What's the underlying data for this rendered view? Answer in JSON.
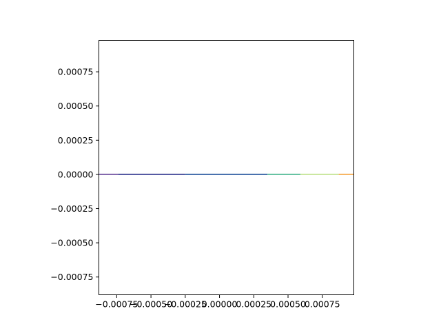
{
  "chart_data": {
    "type": "line",
    "title": "",
    "xlabel": "",
    "ylabel": "",
    "xlim": [
      -0.00088,
      0.00098
    ],
    "ylim": [
      -0.00088,
      0.00098
    ],
    "grid": false,
    "x_ticks": [
      -0.00075,
      -0.0005,
      -0.00025,
      0.0,
      0.00025,
      0.0005,
      0.00075
    ],
    "x_tick_labels": [
      "−0.00075",
      "−0.00050",
      "−0.00025",
      "0.00000",
      "0.00025",
      "0.00050",
      "0.00075"
    ],
    "y_ticks": [
      0.00075,
      0.0005,
      0.00025,
      0.0,
      -0.00025,
      -0.0005,
      -0.00075
    ],
    "y_tick_labels": [
      "0.00075",
      "0.00050",
      "0.00025",
      "0.00000",
      "−0.00025",
      "−0.00050",
      "−0.00075"
    ],
    "segments": [
      {
        "x": [
          -0.00088,
          -0.00074
        ],
        "y": [
          0,
          0
        ],
        "color": "#7b5ea7"
      },
      {
        "x": [
          -0.00074,
          -0.00025
        ],
        "y": [
          0,
          0
        ],
        "color": "#4a4f9c"
      },
      {
        "x": [
          -0.00025,
          0.00035
        ],
        "y": [
          0,
          0
        ],
        "color": "#3d68a8"
      },
      {
        "x": [
          0.00035,
          0.00059
        ],
        "y": [
          0,
          0
        ],
        "color": "#5dbf9c"
      },
      {
        "x": [
          0.00059,
          0.00087
        ],
        "y": [
          0,
          0
        ],
        "color": "#c7e59a"
      },
      {
        "x": [
          0.00087,
          0.00098
        ],
        "y": [
          0,
          0
        ],
        "color": "#f6b15a"
      }
    ]
  }
}
